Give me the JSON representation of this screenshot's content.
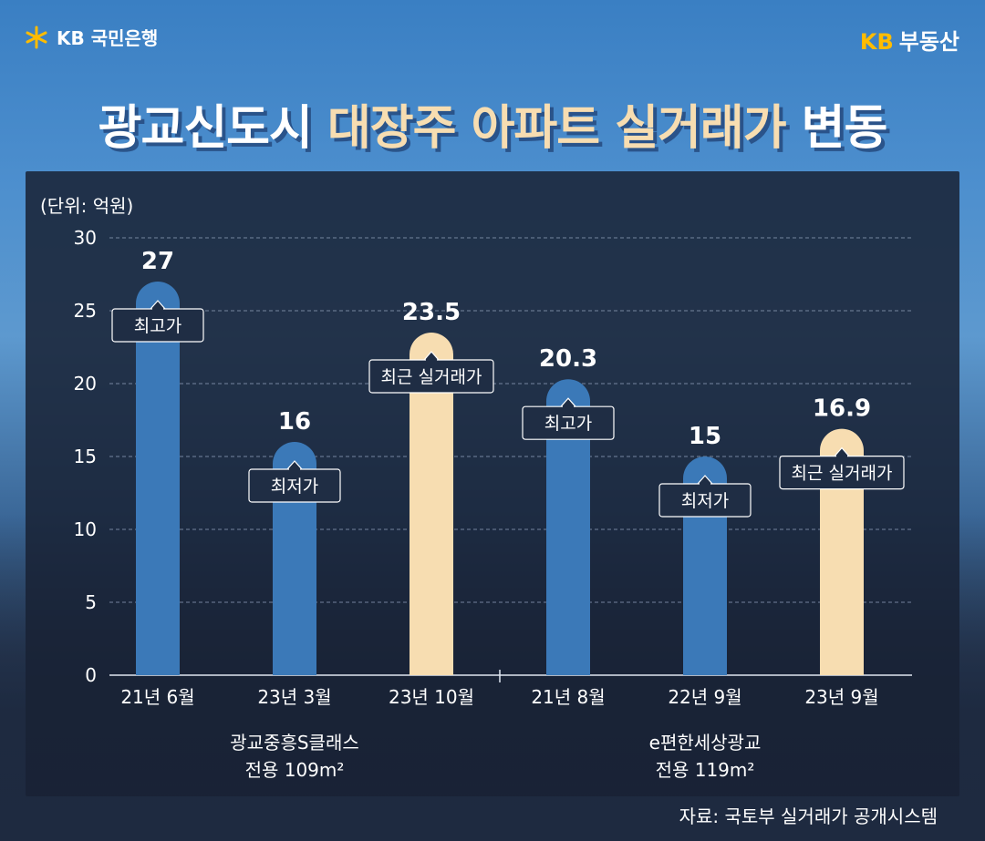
{
  "header": {
    "bank_logo": "KB 국민은행",
    "realestate_logo_kb": "KB",
    "realestate_logo_text": "부동산"
  },
  "title": {
    "prefix": "광교신도시",
    "highlight": "대장주 아파트 실거래가",
    "suffix": "변동"
  },
  "source": "자료: 국토부 실거래가 공개시스템",
  "colors": {
    "blue_bar": "#3b79b8",
    "beige_bar": "#f7ddb1",
    "title_highlight": "#f7ddb1",
    "kb_yellow": "#ffbc00"
  },
  "chart_data": {
    "type": "bar",
    "unit_label": "(단위: 억원)",
    "categories": [
      "21년 6월",
      "23년 3월",
      "23년 10월",
      "21년 8월",
      "22년 9월",
      "23년 9월"
    ],
    "values": [
      27,
      16,
      23.5,
      20.3,
      15,
      16.9
    ],
    "value_labels": [
      "27",
      "16",
      "23.5",
      "20.3",
      "15",
      "16.9"
    ],
    "annotations": [
      "최고가",
      "최저가",
      "최근 실거래가",
      "최고가",
      "최저가",
      "최근 실거래가"
    ],
    "bar_colors": [
      "blue",
      "blue",
      "beige",
      "blue",
      "blue",
      "beige"
    ],
    "groups": [
      {
        "name_line1": "광교중흥S클래스",
        "name_line2": "전용 109m²"
      },
      {
        "name_line1": "e편한세상광교",
        "name_line2": "전용 119m²"
      }
    ],
    "yticks": [
      0,
      5,
      10,
      15,
      20,
      25,
      30
    ],
    "ylim": [
      0,
      30
    ],
    "grid": true
  }
}
